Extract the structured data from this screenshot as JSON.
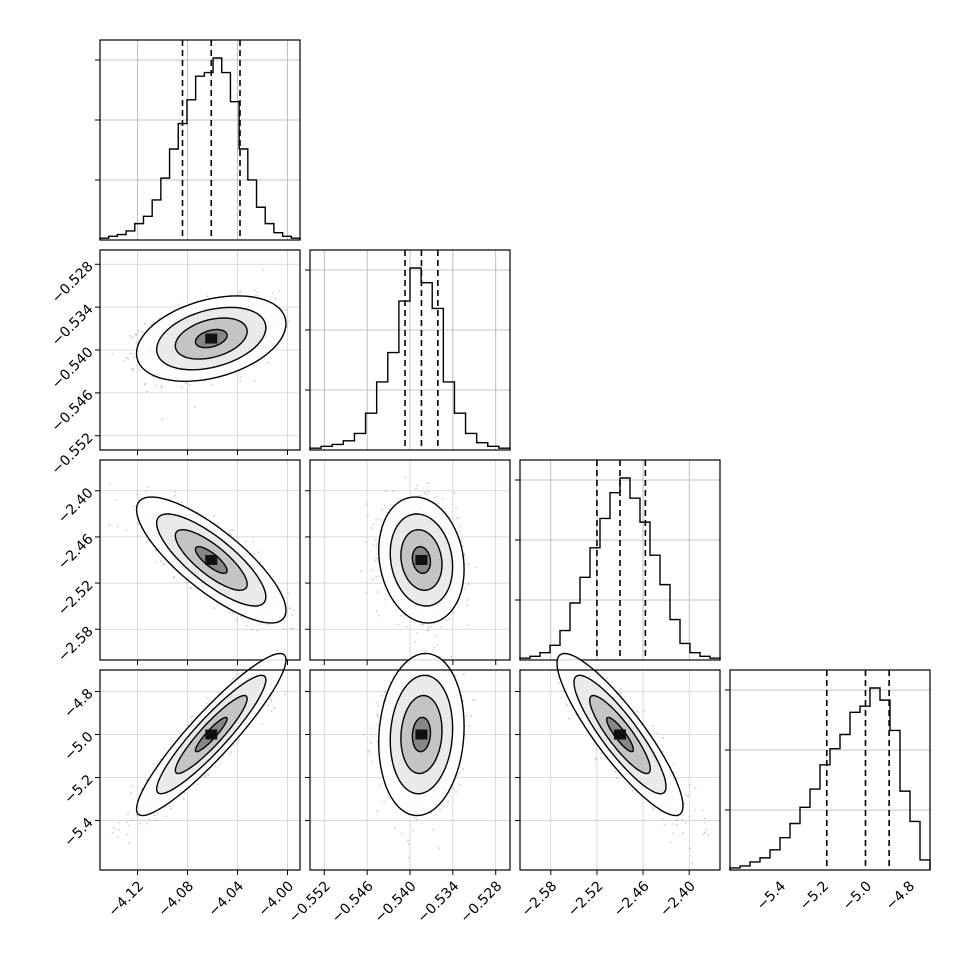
{
  "chart_data": {
    "type": "corner",
    "grid": true,
    "parameters": [
      {
        "ticks": [
          -4.12,
          -4.08,
          -4.04,
          -4.0
        ],
        "tick_labels": [
          "−4.12",
          "−4.08",
          "−4.04",
          "−4.00"
        ],
        "range": [
          -4.15,
          -3.99
        ],
        "quantiles": [
          -4.084,
          -4.061,
          -4.038
        ],
        "hist": [
          1,
          2,
          3,
          5,
          9,
          13,
          22,
          34,
          50,
          64,
          77,
          90,
          92,
          100,
          92,
          76,
          50,
          33,
          18,
          9,
          4,
          2,
          1
        ]
      },
      {
        "ticks": [
          -0.552,
          -0.546,
          -0.54,
          -0.534,
          -0.528
        ],
        "tick_labels": [
          "−0.552",
          "−0.546",
          "−0.540",
          "−0.534",
          "−0.528"
        ],
        "range": [
          -0.554,
          -0.526
        ],
        "quantiles": [
          -0.5407,
          -0.5384,
          -0.5361
        ],
        "hist": [
          1,
          2,
          3,
          5,
          9,
          20,
          37,
          53,
          81,
          99,
          91,
          77,
          37,
          20,
          9,
          4,
          2,
          1
        ]
      },
      {
        "ticks": [
          -2.58,
          -2.52,
          -2.46,
          -2.4
        ],
        "tick_labels": [
          "−2.58",
          "−2.52",
          "−2.46",
          "−2.40"
        ],
        "range": [
          -2.62,
          -2.36
        ],
        "quantiles": [
          -2.52,
          -2.49,
          -2.457
        ],
        "hist": [
          1,
          2,
          4,
          8,
          16,
          31,
          45,
          61,
          77,
          91,
          99,
          88,
          75,
          57,
          41,
          22,
          9,
          4,
          2,
          1
        ]
      },
      {
        "ticks": [
          -5.4,
          -5.2,
          -5.0,
          -4.8
        ],
        "tick_labels": [
          "−5.4",
          "−5.2",
          "−5.0",
          "−4.8"
        ],
        "range": [
          -5.63,
          -4.7
        ],
        "quantiles": [
          -5.18,
          -5.0,
          -4.89
        ],
        "hist": [
          1,
          2,
          4,
          6,
          10,
          16,
          23,
          31,
          40,
          52,
          60,
          67,
          78,
          81,
          90,
          84,
          69,
          39,
          24,
          5
        ]
      }
    ],
    "correlations": {
      "1-0": 0.35,
      "2-0": -0.8,
      "2-1": -0.15,
      "3-0": 0.92,
      "3-1": 0.1,
      "3-2": -0.88
    }
  }
}
